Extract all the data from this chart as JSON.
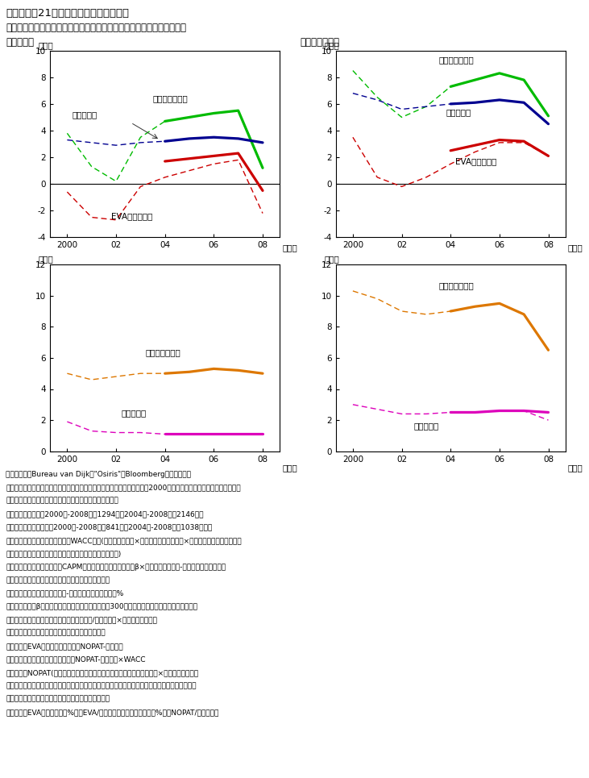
{
  "title1": "第３－３－21図　資本コストの日米比較",
  "title2": "　　　　　　　日本企業の資本コストは、株主資本、負債ともに低水準",
  "label_japan": "（１）日本",
  "label_usa": "（２）アメリカ",
  "years": [
    2000,
    2001,
    2002,
    2003,
    2004,
    2005,
    2006,
    2007,
    2008
  ],
  "jp_top_green_solid": [
    null,
    null,
    null,
    null,
    4.7,
    5.0,
    5.3,
    5.5,
    1.2
  ],
  "jp_top_green_dashed": [
    3.8,
    1.3,
    0.2,
    3.5,
    4.7,
    5.0,
    5.3,
    5.5,
    1.2
  ],
  "jp_top_blue_solid": [
    null,
    null,
    null,
    null,
    3.2,
    3.4,
    3.5,
    3.4,
    3.1
  ],
  "jp_top_blue_dashed": [
    3.3,
    3.1,
    2.9,
    3.1,
    3.2,
    3.4,
    3.5,
    3.4,
    3.1
  ],
  "jp_top_red_solid": [
    null,
    null,
    null,
    null,
    1.7,
    1.9,
    2.1,
    2.3,
    -0.5
  ],
  "jp_top_red_dashed": [
    -0.6,
    -2.5,
    -2.7,
    -0.2,
    0.5,
    1.0,
    1.5,
    1.8,
    -2.2
  ],
  "us_top_green_solid": [
    null,
    null,
    null,
    null,
    7.3,
    7.8,
    8.3,
    7.8,
    5.1
  ],
  "us_top_green_dashed": [
    8.5,
    6.5,
    5.0,
    5.8,
    7.3,
    7.8,
    8.3,
    7.8,
    5.1
  ],
  "us_top_blue_solid": [
    null,
    null,
    null,
    null,
    6.0,
    6.1,
    6.3,
    6.1,
    4.5
  ],
  "us_top_blue_dashed": [
    6.8,
    6.3,
    5.6,
    5.8,
    6.0,
    6.1,
    6.3,
    6.1,
    4.5
  ],
  "us_top_red_solid": [
    null,
    null,
    null,
    null,
    2.5,
    2.9,
    3.3,
    3.2,
    2.1
  ],
  "us_top_red_dashed": [
    3.5,
    0.5,
    -0.2,
    0.5,
    1.5,
    2.4,
    3.1,
    3.1,
    2.1
  ],
  "jp_bot_orange_solid": [
    null,
    null,
    null,
    null,
    5.0,
    5.1,
    5.3,
    5.2,
    5.0
  ],
  "jp_bot_orange_dashed": [
    5.0,
    4.6,
    4.8,
    5.0,
    5.0,
    5.1,
    5.3,
    5.2,
    5.0
  ],
  "jp_bot_pink_solid": [
    null,
    null,
    null,
    null,
    1.1,
    1.1,
    1.1,
    1.1,
    1.1
  ],
  "jp_bot_pink_dashed": [
    1.9,
    1.3,
    1.2,
    1.2,
    1.1,
    1.1,
    1.1,
    1.1,
    1.1
  ],
  "us_bot_orange_solid": [
    null,
    null,
    null,
    null,
    9.0,
    9.3,
    9.5,
    8.8,
    6.5
  ],
  "us_bot_orange_dashed": [
    10.3,
    9.8,
    9.0,
    8.8,
    9.0,
    9.3,
    9.5,
    8.8,
    6.5
  ],
  "us_bot_pink_solid": [
    null,
    null,
    null,
    null,
    2.5,
    2.5,
    2.6,
    2.6,
    2.5
  ],
  "us_bot_pink_dashed": [
    3.0,
    2.7,
    2.4,
    2.4,
    2.5,
    2.5,
    2.6,
    2.6,
    2.0
  ],
  "note_lines": [
    "（備考）１．Bureau van Dijk社\"Osiris\"、Bloombergにより作成。",
    "　　　２．対象企業は、金融・保険業を除いて、上記のデータベースより2000年以降の連続決算データが取得でき、",
    "　　　　　必要項目に欠損値のない上場企業としている。",
    "　　　　　日本：（2000年-2008年；1294社、2004年-2008年；2146社）",
    "　　　　　アメリカ：（2000年-2008年；841社、2004年-2008年；1038社）。",
    "　　　３．加重平均資本コスト（WACC）＝(株主資本コスト×時価総額＋負債コスト×有利子負債）／（時価総額",
    "　　　　　　　　　　　　　　　　　　　　＋有利子負債)",
    "　　　　　株主資本コスト（CAPM）＝リスクフリーレート＋β×（市場期待収益率-リスクフリーレート）",
    "　　　　　　　リスクフリーレート：長期国債利回り",
    "　　　　　　　市場期待収益率-リスクフリーレート：４%",
    "　　　　　　　β値：インデックスとして日本は日経300、アメリカはダウ・ジョーンズを使用",
    "　　　　　負債コスト（税引後）＝支払利息/有利子負債×（１－実効税率）",
    "　　　　　有利子負債＝長期・短期借入金＋社債。",
    "　　　４．EVA（経済付加価値）＝NOPAT-資本費用",
    "　　　　　　　　　　　　　　　＝NOPAT-投下資本×WACC",
    "　　　　　NOPAT(税引後営業利益）＝（営業利益＋受取利息・配当金）×（１－実効税率）",
    "　　　　　　ただし、事業利益（営業利益＋受取利息・配当金）がマイナスの場合は無税と仮定。",
    "　　　　　投下資本＝短期借入金＋固定負債＋資本。",
    "　　　５．EVAスプレッド（%）＝EVA/投下資本。投下資本利益率（%）＝NOPAT/投下資本。"
  ]
}
